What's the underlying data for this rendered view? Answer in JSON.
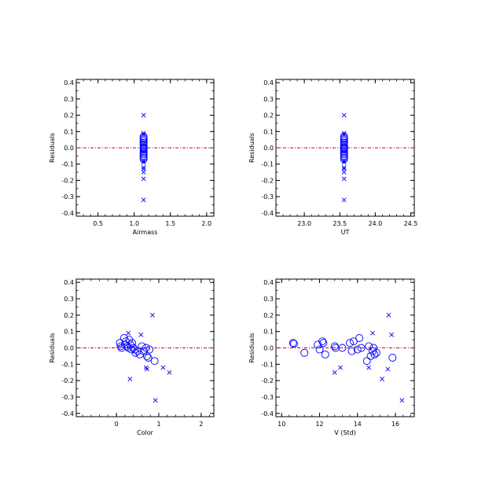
{
  "chart_data": [
    {
      "type": "scatter",
      "xlabel": "Airmass",
      "ylabel": "Residuals",
      "xlim": [
        0.2,
        2.1
      ],
      "ylim": [
        -0.42,
        0.42
      ],
      "xticks": [
        "0.5",
        "1.0",
        "1.5",
        "2.0"
      ],
      "yticks": [
        "0.4",
        "0.3",
        "0.2",
        "0.1",
        "0.0",
        "-0.1",
        "-0.2",
        "-0.3",
        "-0.4"
      ],
      "reference_line": 0,
      "series": [
        {
          "marker": "circle",
          "points": [
            [
              1.13,
              0.07
            ],
            [
              1.13,
              0.06
            ],
            [
              1.13,
              0.05
            ],
            [
              1.13,
              0.04
            ],
            [
              1.13,
              0.03
            ],
            [
              1.13,
              0.02
            ],
            [
              1.13,
              0.015
            ],
            [
              1.13,
              0.005
            ],
            [
              1.13,
              0.0
            ],
            [
              1.13,
              -0.005
            ],
            [
              1.13,
              -0.01
            ],
            [
              1.13,
              -0.02
            ],
            [
              1.13,
              -0.03
            ],
            [
              1.13,
              -0.04
            ],
            [
              1.13,
              -0.05
            ],
            [
              1.13,
              -0.06
            ],
            [
              1.13,
              -0.07
            ]
          ]
        },
        {
          "marker": "cross",
          "points": [
            [
              1.13,
              0.2
            ],
            [
              1.13,
              0.09
            ],
            [
              1.13,
              0.08
            ],
            [
              1.13,
              -0.08
            ],
            [
              1.13,
              -0.09
            ],
            [
              1.13,
              -0.12
            ],
            [
              1.13,
              -0.13
            ],
            [
              1.13,
              -0.15
            ],
            [
              1.13,
              -0.19
            ],
            [
              1.13,
              -0.32
            ]
          ]
        }
      ]
    },
    {
      "type": "scatter",
      "xlabel": "UT",
      "ylabel": "Residuals",
      "xlim": [
        22.6,
        24.55
      ],
      "ylim": [
        -0.42,
        0.42
      ],
      "xticks": [
        "23.0",
        "23.5",
        "24.0",
        "24.5"
      ],
      "yticks": [
        "0.4",
        "0.3",
        "0.2",
        "0.1",
        "0.0",
        "-0.1",
        "-0.2",
        "-0.3",
        "-0.4"
      ],
      "reference_line": 0,
      "series": [
        {
          "marker": "circle",
          "points": [
            [
              23.56,
              0.07
            ],
            [
              23.56,
              0.06
            ],
            [
              23.56,
              0.05
            ],
            [
              23.56,
              0.04
            ],
            [
              23.56,
              0.03
            ],
            [
              23.56,
              0.02
            ],
            [
              23.56,
              0.015
            ],
            [
              23.56,
              0.005
            ],
            [
              23.56,
              0.0
            ],
            [
              23.56,
              -0.005
            ],
            [
              23.56,
              -0.01
            ],
            [
              23.56,
              -0.02
            ],
            [
              23.56,
              -0.03
            ],
            [
              23.56,
              -0.04
            ],
            [
              23.56,
              -0.05
            ],
            [
              23.56,
              -0.06
            ],
            [
              23.56,
              -0.07
            ]
          ]
        },
        {
          "marker": "cross",
          "points": [
            [
              23.56,
              0.2
            ],
            [
              23.56,
              0.09
            ],
            [
              23.56,
              0.08
            ],
            [
              23.56,
              -0.08
            ],
            [
              23.56,
              -0.09
            ],
            [
              23.56,
              -0.12
            ],
            [
              23.56,
              -0.13
            ],
            [
              23.56,
              -0.15
            ],
            [
              23.56,
              -0.19
            ],
            [
              23.56,
              -0.32
            ]
          ]
        }
      ]
    },
    {
      "type": "scatter",
      "xlabel": "Color",
      "ylabel": "Residuals",
      "xlim": [
        -0.95,
        2.3
      ],
      "ylim": [
        -0.42,
        0.42
      ],
      "xticks": [
        "0",
        "1",
        "2"
      ],
      "yticks": [
        "0.4",
        "0.3",
        "0.2",
        "0.1",
        "0.0",
        "-0.1",
        "-0.2",
        "-0.3",
        "-0.4"
      ],
      "reference_line": 0,
      "series": [
        {
          "marker": "circle",
          "points": [
            [
              0.08,
              0.03
            ],
            [
              0.1,
              0.01
            ],
            [
              0.12,
              0.0
            ],
            [
              0.18,
              0.06
            ],
            [
              0.2,
              0.02
            ],
            [
              0.22,
              0.04
            ],
            [
              0.25,
              0.01
            ],
            [
              0.28,
              0.0
            ],
            [
              0.3,
              0.05
            ],
            [
              0.33,
              0.02
            ],
            [
              0.35,
              -0.01
            ],
            [
              0.37,
              0.03
            ],
            [
              0.4,
              0.0
            ],
            [
              0.43,
              -0.01
            ],
            [
              0.45,
              -0.03
            ],
            [
              0.5,
              -0.02
            ],
            [
              0.55,
              -0.04
            ],
            [
              0.6,
              0.01
            ],
            [
              0.65,
              -0.02
            ],
            [
              0.7,
              0.0
            ],
            [
              0.72,
              -0.05
            ],
            [
              0.75,
              -0.06
            ],
            [
              0.78,
              -0.01
            ],
            [
              0.9,
              -0.08
            ]
          ]
        },
        {
          "marker": "cross",
          "points": [
            [
              0.28,
              0.09
            ],
            [
              0.32,
              -0.19
            ],
            [
              0.58,
              0.08
            ],
            [
              0.7,
              -0.12
            ],
            [
              0.72,
              -0.13
            ],
            [
              0.85,
              0.2
            ],
            [
              0.92,
              -0.32
            ],
            [
              1.1,
              -0.12
            ],
            [
              1.25,
              -0.15
            ]
          ]
        }
      ]
    },
    {
      "type": "scatter",
      "xlabel": "V (Std)",
      "ylabel": "Residuals",
      "xlim": [
        9.7,
        17.0
      ],
      "ylim": [
        -0.42,
        0.42
      ],
      "xticks": [
        "10",
        "12",
        "14",
        "16"
      ],
      "yticks": [
        "0.4",
        "0.3",
        "0.2",
        "0.1",
        "0.0",
        "-0.1",
        "-0.2",
        "-0.3",
        "-0.4"
      ],
      "reference_line": 0,
      "series": [
        {
          "marker": "circle",
          "points": [
            [
              10.6,
              0.03
            ],
            [
              10.65,
              0.025
            ],
            [
              11.2,
              -0.03
            ],
            [
              11.9,
              0.02
            ],
            [
              12.0,
              -0.01
            ],
            [
              12.15,
              0.04
            ],
            [
              12.2,
              0.03
            ],
            [
              12.3,
              -0.04
            ],
            [
              12.8,
              0.01
            ],
            [
              12.85,
              0.0
            ],
            [
              13.2,
              0.0
            ],
            [
              13.6,
              0.03
            ],
            [
              13.7,
              -0.02
            ],
            [
              13.8,
              0.04
            ],
            [
              14.0,
              -0.01
            ],
            [
              14.1,
              0.06
            ],
            [
              14.2,
              0.0
            ],
            [
              14.5,
              -0.08
            ],
            [
              14.6,
              0.01
            ],
            [
              14.7,
              -0.05
            ],
            [
              14.8,
              -0.02
            ],
            [
              14.85,
              0.0
            ],
            [
              14.9,
              -0.04
            ],
            [
              15.0,
              -0.03
            ],
            [
              15.85,
              -0.06
            ]
          ]
        },
        {
          "marker": "cross",
          "points": [
            [
              12.8,
              -0.15
            ],
            [
              13.1,
              -0.12
            ],
            [
              14.6,
              -0.12
            ],
            [
              14.8,
              0.09
            ],
            [
              15.3,
              -0.19
            ],
            [
              15.6,
              -0.13
            ],
            [
              15.65,
              0.2
            ],
            [
              15.8,
              0.08
            ],
            [
              16.35,
              -0.32
            ]
          ]
        }
      ]
    }
  ],
  "colors": {
    "marker": "#0000ff",
    "reference_line": "#d10000",
    "axes": "#000000"
  }
}
